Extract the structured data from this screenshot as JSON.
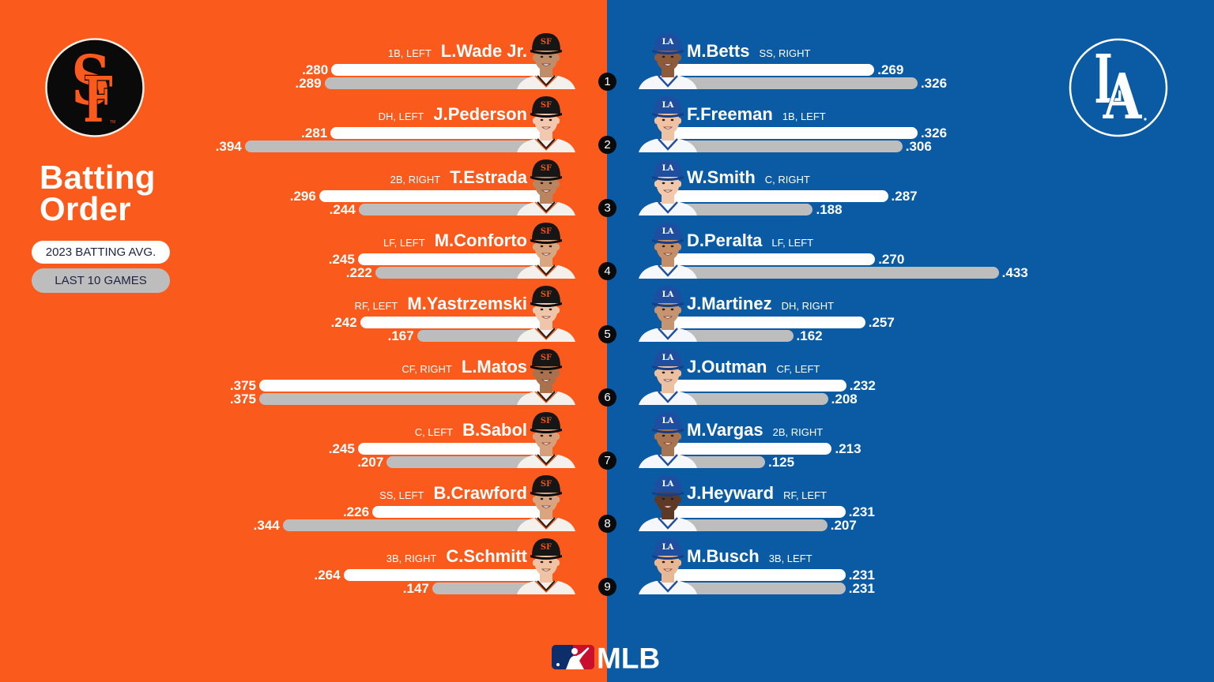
{
  "title": {
    "line1": "Batting",
    "line2": "Order"
  },
  "legend": {
    "season_label": "2023 BATTING AVG.",
    "recent_label": "LAST 10 GAMES"
  },
  "colors": {
    "giants_orange": "#FB5A1D",
    "dodgers_blue": "#0B5BA4",
    "season_bar": "#FFFFFF",
    "last10_bar": "#BDBDBD",
    "order_badge": "#0A0A0A"
  },
  "order_numbers": [
    "1",
    "2",
    "3",
    "4",
    "5",
    "6",
    "7",
    "8",
    "9"
  ],
  "giants": {
    "logo_icon": "sf-giants-logo",
    "logo_text": "SF",
    "lineup": [
      {
        "name": "L.Wade Jr.",
        "position": "1B, LEFT",
        "avg_2023": ".280",
        "last_10": ".289"
      },
      {
        "name": "J.Pederson",
        "position": "DH, LEFT",
        "avg_2023": ".281",
        "last_10": ".394"
      },
      {
        "name": "T.Estrada",
        "position": "2B, RIGHT",
        "avg_2023": ".296",
        "last_10": ".244"
      },
      {
        "name": "M.Conforto",
        "position": "LF, LEFT",
        "avg_2023": ".245",
        "last_10": ".222"
      },
      {
        "name": "M.Yastrzemski",
        "position": "RF, LEFT",
        "avg_2023": ".242",
        "last_10": ".167"
      },
      {
        "name": "L.Matos",
        "position": "CF, RIGHT",
        "avg_2023": ".375",
        "last_10": ".375"
      },
      {
        "name": "B.Sabol",
        "position": "C, LEFT",
        "avg_2023": ".245",
        "last_10": ".207"
      },
      {
        "name": "B.Crawford",
        "position": "SS, LEFT",
        "avg_2023": ".226",
        "last_10": ".344"
      },
      {
        "name": "C.Schmitt",
        "position": "3B, RIGHT",
        "avg_2023": ".264",
        "last_10": ".147"
      }
    ]
  },
  "dodgers": {
    "logo_icon": "la-dodgers-logo",
    "logo_text": "LA",
    "lineup": [
      {
        "name": "M.Betts",
        "position": "SS, RIGHT",
        "avg_2023": ".269",
        "last_10": ".326"
      },
      {
        "name": "F.Freeman",
        "position": "1B, LEFT",
        "avg_2023": ".326",
        "last_10": ".306"
      },
      {
        "name": "W.Smith",
        "position": "C, RIGHT",
        "avg_2023": ".287",
        "last_10": ".188"
      },
      {
        "name": "D.Peralta",
        "position": "LF, LEFT",
        "avg_2023": ".270",
        "last_10": ".433"
      },
      {
        "name": "J.Martinez",
        "position": "DH, RIGHT",
        "avg_2023": ".257",
        "last_10": ".162"
      },
      {
        "name": "J.Outman",
        "position": "CF, LEFT",
        "avg_2023": ".232",
        "last_10": ".208"
      },
      {
        "name": "M.Vargas",
        "position": "2B, RIGHT",
        "avg_2023": ".213",
        "last_10": ".125"
      },
      {
        "name": "J.Heyward",
        "position": "RF, LEFT",
        "avg_2023": ".231",
        "last_10": ".207"
      },
      {
        "name": "M.Busch",
        "position": "3B, LEFT",
        "avg_2023": ".231",
        "last_10": ".231"
      }
    ]
  },
  "footer": {
    "brand": "MLB",
    "logo_icon": "mlb-logo"
  },
  "chart_data": [
    {
      "type": "bar",
      "orientation": "horizontal",
      "title": "Batting Order",
      "group": "SF",
      "categories": [
        "L.Wade Jr.",
        "J.Pederson",
        "T.Estrada",
        "M.Conforto",
        "M.Yastrzemski",
        "L.Matos",
        "B.Sabol",
        "B.Crawford",
        "C.Schmitt"
      ],
      "series": [
        {
          "name": "2023 BATTING AVG.",
          "color": "#FFFFFF",
          "values": [
            0.28,
            0.281,
            0.296,
            0.245,
            0.242,
            0.375,
            0.245,
            0.226,
            0.264
          ]
        },
        {
          "name": "LAST 10 GAMES",
          "color": "#BDBDBD",
          "values": [
            0.289,
            0.394,
            0.244,
            0.222,
            0.167,
            0.375,
            0.207,
            0.344,
            0.147
          ]
        }
      ],
      "xlabel": "",
      "ylabel": "",
      "grid": false,
      "legend_position": "left"
    },
    {
      "type": "bar",
      "orientation": "horizontal",
      "title": "Batting Order",
      "group": "LA",
      "categories": [
        "M.Betts",
        "F.Freeman",
        "W.Smith",
        "D.Peralta",
        "J.Martinez",
        "J.Outman",
        "M.Vargas",
        "J.Heyward",
        "M.Busch"
      ],
      "series": [
        {
          "name": "2023 BATTING AVG.",
          "color": "#FFFFFF",
          "values": [
            0.269,
            0.326,
            0.287,
            0.27,
            0.257,
            0.232,
            0.213,
            0.231,
            0.231
          ]
        },
        {
          "name": "LAST 10 GAMES",
          "color": "#BDBDBD",
          "values": [
            0.326,
            0.306,
            0.188,
            0.433,
            0.162,
            0.208,
            0.125,
            0.207,
            0.231
          ]
        }
      ],
      "xlabel": "",
      "ylabel": "",
      "grid": false,
      "legend_position": "left"
    }
  ]
}
